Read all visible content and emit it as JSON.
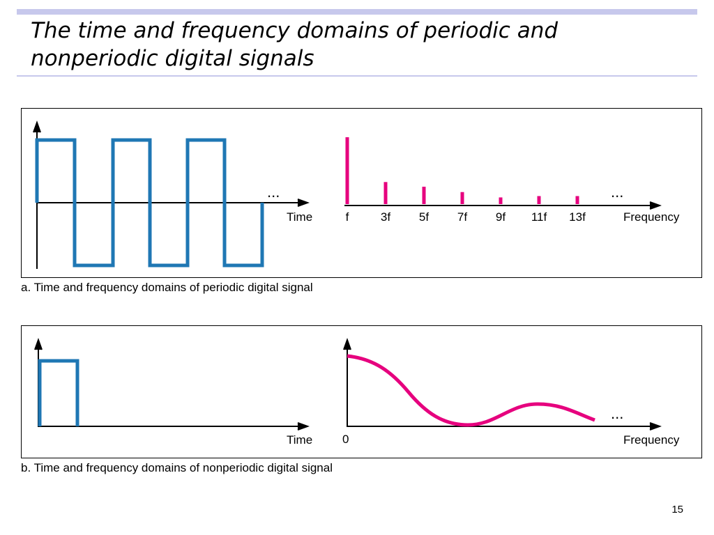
{
  "slide": {
    "title": "The time and frequency domains of periodic and nonperiodic digital signals",
    "page_number": "15"
  },
  "panel_a": {
    "caption": "a. Time and frequency domains of periodic digital signal",
    "time_axis_label": "Time",
    "freq_axis_label": "Frequency",
    "time_ellipsis": "...",
    "freq_ellipsis": "...",
    "harmonics": [
      {
        "label": "f",
        "relative_amplitude": 1.0
      },
      {
        "label": "3f",
        "relative_amplitude": 0.33
      },
      {
        "label": "5f",
        "relative_amplitude": 0.26
      },
      {
        "label": "7f",
        "relative_amplitude": 0.18
      },
      {
        "label": "9f",
        "relative_amplitude": 0.1
      },
      {
        "label": "11f",
        "relative_amplitude": 0.12
      },
      {
        "label": "13f",
        "relative_amplitude": 0.12
      }
    ]
  },
  "panel_b": {
    "caption": "b. Time and frequency domains of nonperiodic digital signal",
    "time_axis_label": "Time",
    "freq_axis_label": "Frequency",
    "freq_origin_label": "0",
    "freq_ellipsis": "..."
  },
  "colors": {
    "time_signal": "#1f77b4",
    "spectrum": "#e6007e",
    "axis": "#000000",
    "rule": "#c7c8ec"
  }
}
